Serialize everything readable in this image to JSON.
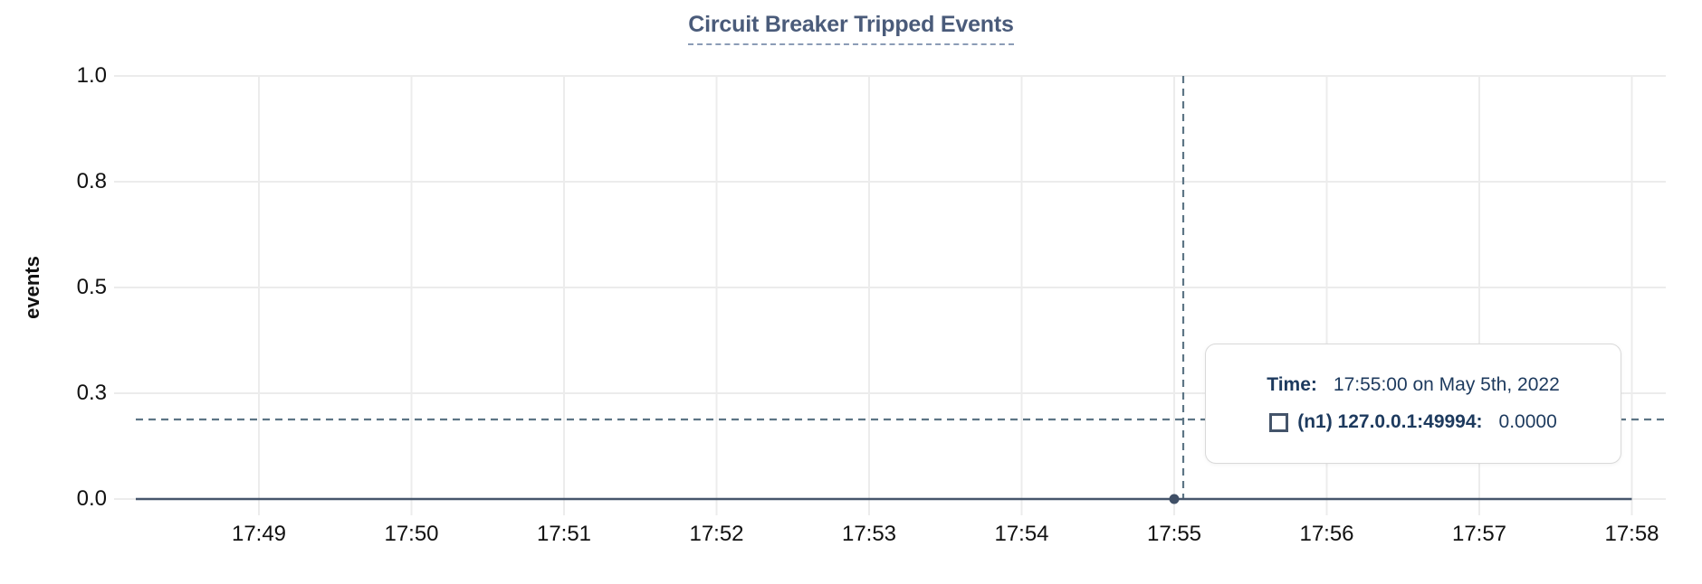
{
  "chart": {
    "title": "Circuit Breaker Tripped Events",
    "y_axis_title": "events",
    "y_ticks": [
      "1.0",
      "0.8",
      "0.5",
      "0.3",
      "0.0"
    ],
    "x_ticks": [
      "17:49",
      "17:50",
      "17:51",
      "17:52",
      "17:53",
      "17:54",
      "17:55",
      "17:56",
      "17:57",
      "17:58"
    ]
  },
  "tooltip": {
    "time_label": "Time:",
    "time_value": "17:55:00 on May 5th, 2022",
    "series_label": "(n1) 127.0.0.1:49994:",
    "series_value": "0.0000"
  },
  "colors": {
    "series_line": "#46566c",
    "point": "#3f4f66",
    "grid": "#ececec",
    "crosshair": "#5d7585",
    "title": "#4a5b7a",
    "title_underline": "#8b9cb6",
    "tooltip_text": "#1d3a5e",
    "tooltip_border": "#d9d9d9",
    "axis_text": "#111111"
  },
  "chart_data": {
    "type": "line",
    "title": "Circuit Breaker Tripped Events",
    "xlabel": "",
    "ylabel": "events",
    "x_tick_labels": [
      "17:49",
      "17:50",
      "17:51",
      "17:52",
      "17:53",
      "17:54",
      "17:55",
      "17:56",
      "17:57",
      "17:58"
    ],
    "y_tick_labels": [
      0.0,
      0.3,
      0.5,
      0.8,
      1.0
    ],
    "ylim": [
      0,
      1
    ],
    "grid": true,
    "legend_position": "tooltip-overlay",
    "series": [
      {
        "name": "(n1) 127.0.0.1:49994",
        "color": "#46566c",
        "x": [
          "17:48",
          "17:49",
          "17:50",
          "17:51",
          "17:52",
          "17:53",
          "17:54",
          "17:55",
          "17:56",
          "17:57",
          "17:58"
        ],
        "y": [
          0,
          0,
          0,
          0,
          0,
          0,
          0,
          0,
          0,
          0,
          0
        ],
        "description": "constant 0 events across the entire visible window"
      }
    ],
    "cursor": {
      "crosshair_visible": true,
      "hovered_x": "17:55:00 on May 5th, 2022",
      "hovered_series_value": 0.0,
      "highlight_point": {
        "x": "17:55",
        "y": 0
      }
    }
  }
}
